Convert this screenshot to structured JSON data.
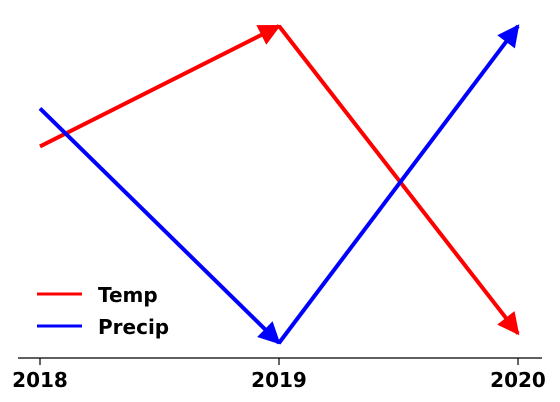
{
  "chart_data": {
    "type": "line",
    "title": "",
    "xlabel": "",
    "ylabel": "",
    "categories": [
      "2018",
      "2019",
      "2020"
    ],
    "series": [
      {
        "name": "Temp",
        "color": "#ff0000",
        "values": [
          0.62,
          1.0,
          0.03
        ]
      },
      {
        "name": "Precip",
        "color": "#0000ff",
        "values": [
          0.74,
          0.0,
          1.0
        ]
      }
    ],
    "ylim": [
      0,
      1
    ],
    "grid": false,
    "legend": "lower-left",
    "markers": "arrowheads"
  }
}
